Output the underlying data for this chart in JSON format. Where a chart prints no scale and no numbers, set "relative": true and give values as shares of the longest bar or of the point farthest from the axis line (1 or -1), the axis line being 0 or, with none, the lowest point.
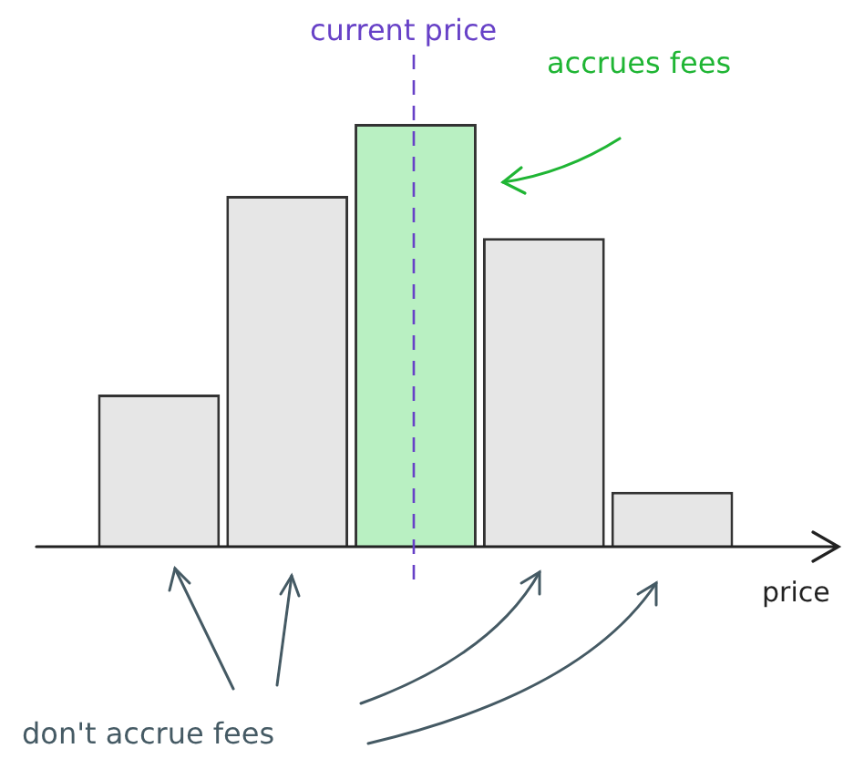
{
  "chart_data": {
    "type": "bar",
    "relative": true,
    "categories": [
      null,
      null,
      null,
      null,
      null
    ],
    "tick_labels": false,
    "values": [
      0.36,
      0.83,
      1,
      0.73,
      0.13
    ],
    "colors": [
      "#e6e6e6",
      "#e6e6e6",
      "#b9f0c2",
      "#e6e6e6",
      "#e6e6e6"
    ],
    "xlabel": "price",
    "annotations": [
      "current price",
      "accrues fees",
      "don't accrue fees"
    ]
  }
}
